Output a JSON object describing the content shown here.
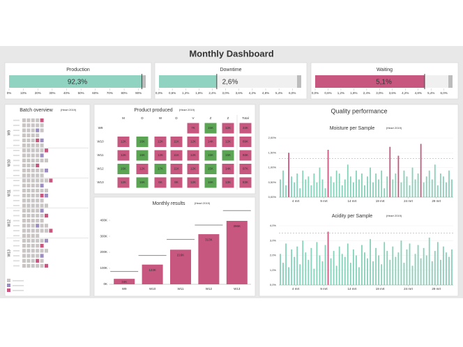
{
  "header": {
    "title": "Monthly Dashboard"
  },
  "kpis": [
    {
      "title": "Production",
      "value": 92.3,
      "value_label": "92,3%",
      "color": "#8fd3c0",
      "xlim": [
        0,
        95
      ],
      "xticks": [
        {
          "value": 0,
          "label": "0%"
        },
        {
          "value": 10,
          "label": "10%"
        },
        {
          "value": 20,
          "label": "20%"
        },
        {
          "value": 30,
          "label": "30%"
        },
        {
          "value": 40,
          "label": "40%"
        },
        {
          "value": 50,
          "label": "50%"
        },
        {
          "value": 60,
          "label": "60%"
        },
        {
          "value": 70,
          "label": "70%"
        },
        {
          "value": 80,
          "label": "80%"
        },
        {
          "value": 90,
          "label": "90%"
        }
      ]
    },
    {
      "title": "Downtime",
      "value": 2.6,
      "value_label": "2,6%",
      "color": "#8fd3c0",
      "xlim": [
        0,
        6.4
      ],
      "xticks": [
        {
          "value": 0,
          "label": "0,0%"
        },
        {
          "value": 0.6,
          "label": "0,6%"
        },
        {
          "value": 1.2,
          "label": "1,2%"
        },
        {
          "value": 1.8,
          "label": "1,8%"
        },
        {
          "value": 2.4,
          "label": "2,4%"
        },
        {
          "value": 3.0,
          "label": "3,0%"
        },
        {
          "value": 3.6,
          "label": "3,6%"
        },
        {
          "value": 4.2,
          "label": "4,2%"
        },
        {
          "value": 4.8,
          "label": "4,8%"
        },
        {
          "value": 5.4,
          "label": "5,4%"
        },
        {
          "value": 6.0,
          "label": "6,0%"
        }
      ]
    },
    {
      "title": "Waiting",
      "value": 5.1,
      "value_label": "5,1%",
      "color": "#c7577f",
      "xlim": [
        0,
        6.4
      ],
      "xticks": [
        {
          "value": 0,
          "label": "0,0%"
        },
        {
          "value": 0.6,
          "label": "0,6%"
        },
        {
          "value": 1.2,
          "label": "1,2%"
        },
        {
          "value": 1.8,
          "label": "1,8%"
        },
        {
          "value": 2.4,
          "label": "2,4%"
        },
        {
          "value": 3.0,
          "label": "3,0%"
        },
        {
          "value": 3.6,
          "label": "3,6%"
        },
        {
          "value": 4.2,
          "label": "4,2%"
        },
        {
          "value": 4.8,
          "label": "4,8%"
        },
        {
          "value": 5.4,
          "label": "5,4%"
        },
        {
          "value": 6.0,
          "label": "6,0%"
        }
      ]
    }
  ],
  "batch_overview": {
    "title": "Batch overview",
    "subtitle": "(Heart 2019)",
    "status_colors": [
      "#c9c5c5",
      "#9d8ec2",
      "#c7577f"
    ],
    "weeks": [
      "W9",
      "W10",
      "W11",
      "W12",
      "W13"
    ],
    "rows": [
      [
        0,
        0,
        0,
        0,
        2
      ],
      [
        0,
        0,
        0,
        0,
        0
      ],
      [
        0,
        0,
        0,
        1,
        0
      ],
      [
        0,
        0,
        0,
        0
      ],
      [
        0,
        0,
        0,
        2,
        1
      ],
      [
        0,
        0,
        0,
        0,
        0
      ],
      [
        0,
        0,
        0,
        0,
        0,
        2
      ],
      [
        0,
        0,
        0,
        0,
        1
      ],
      [
        0,
        0,
        0,
        0,
        0,
        0
      ],
      [
        0,
        0,
        0,
        2
      ],
      [
        0,
        0,
        0,
        0,
        0,
        1
      ],
      [
        0,
        0,
        0,
        0,
        0
      ],
      [
        0,
        0,
        0,
        0,
        0,
        0,
        2
      ],
      [
        0,
        0,
        0,
        0,
        1
      ],
      [
        0,
        0,
        0,
        0,
        0,
        0
      ],
      [
        0,
        0,
        0,
        0,
        2,
        1
      ],
      [
        0,
        0,
        0,
        0,
        0
      ],
      [
        0,
        0,
        0,
        0,
        0,
        0
      ],
      [
        0,
        0,
        0,
        0,
        1
      ],
      [
        0,
        0,
        0,
        0,
        0,
        2
      ],
      [
        0,
        0,
        0,
        0,
        0
      ],
      [
        0,
        0,
        0,
        1,
        0,
        0
      ],
      [
        0,
        0,
        0,
        0,
        0,
        0,
        2
      ],
      [
        0,
        0,
        0,
        0
      ],
      [
        0,
        0,
        0,
        0,
        0,
        1
      ],
      [
        0,
        0,
        0,
        0,
        2
      ],
      [
        0,
        0,
        0,
        0,
        0,
        0
      ],
      [
        0,
        0,
        0,
        0,
        1
      ],
      [
        0,
        0,
        0,
        2,
        0
      ],
      [
        0,
        0,
        0,
        0,
        0,
        2
      ]
    ]
  },
  "product_produced": {
    "title": "Product produced",
    "subtitle": "(Heart 2019)",
    "columns": [
      "M",
      "D",
      "W",
      "D",
      "V",
      "Z",
      "Z",
      "Total"
    ],
    "threshold": 15,
    "above_color": "#5aa454",
    "below_color": "#c7577f",
    "rows": [
      {
        "label": "W9",
        "values": [
          null,
          null,
          null,
          null,
          7,
          15,
          12
        ],
        "value_labels": [
          null,
          null,
          null,
          null,
          "7K",
          "15K",
          "12K"
        ],
        "total": 34,
        "total_label": "34K"
      },
      {
        "label": "W10",
        "values": [
          12,
          16,
          12,
          11,
          12,
          14,
          12
        ],
        "value_labels": [
          "12K",
          "16K",
          "12K",
          "11K",
          "12K",
          "14K",
          "12K"
        ],
        "total": 89,
        "total_label": "89K"
      },
      {
        "label": "W11",
        "values": [
          12,
          16,
          12,
          11,
          12,
          15,
          15
        ],
        "value_labels": [
          "12K",
          "16K",
          "12K",
          "11K",
          "12K",
          "15K",
          "15K"
        ],
        "total": 93,
        "total_label": "93K"
      },
      {
        "label": "W12",
        "values": [
          16,
          12,
          17,
          11,
          12,
          15,
          14
        ],
        "value_labels": [
          "16K",
          "12K",
          "17K",
          "11K",
          "12K",
          "15K",
          "14K"
        ],
        "total": 97,
        "total_label": "97K"
      },
      {
        "label": "W13",
        "values": [
          12,
          16,
          6,
          8,
          12,
          16,
          13
        ],
        "value_labels": [
          "12K",
          "16K",
          "6K",
          "8K",
          "12K",
          "16K",
          "13K"
        ],
        "total": 83,
        "total_label": "83K"
      }
    ]
  },
  "quality": {
    "title": "Quality performance"
  },
  "chart_data": [
    {
      "type": "bar",
      "title": "Monthly results",
      "subtitle": "(Heart 2019)",
      "categories": [
        "W9",
        "W10",
        "W11",
        "W12",
        "W13"
      ],
      "values": [
        34,
        123,
        216,
        313,
        396
      ],
      "value_labels": [
        "34K",
        "123K",
        "216K",
        "313K",
        "396K"
      ],
      "targets": [
        80,
        180,
        280,
        370,
        460
      ],
      "color": "#c7577f",
      "target_color": "#888888",
      "ylim": [
        0,
        470
      ],
      "yticks": [
        {
          "value": 0,
          "label": "0K"
        },
        {
          "value": 100,
          "label": "100K"
        },
        {
          "value": 200,
          "label": "200K"
        },
        {
          "value": 300,
          "label": "300K"
        },
        {
          "value": 400,
          "label": "400K"
        }
      ]
    },
    {
      "type": "column",
      "title": "Moisture per Sample",
      "subtitle": "(Heart 2019)",
      "color": "#86d1b9",
      "highlight_color": "#c7577f",
      "limit": 1.3,
      "values": [
        0.6,
        0.9,
        0.4,
        1.5,
        0.7,
        0.5,
        0.8,
        0.3,
        0.9,
        0.6,
        0.7,
        0.4,
        0.8,
        0.5,
        1.0,
        0.6,
        0.3,
        1.6,
        0.7,
        0.5,
        0.9,
        0.8,
        0.4,
        0.6,
        1.1,
        0.7,
        0.5,
        0.9,
        0.6,
        0.8,
        0.4,
        0.7,
        1.0,
        0.5,
        0.8,
        0.6,
        0.9,
        0.3,
        0.7,
        1.7,
        0.6,
        0.8,
        1.4,
        0.5,
        0.9,
        0.7,
        0.4,
        1.0,
        0.6,
        0.8,
        1.8,
        0.5,
        0.7,
        0.9,
        0.6,
        1.1,
        0.4,
        0.8,
        0.7,
        0.5,
        0.9,
        0.6
      ],
      "xlim": [
        0,
        62
      ],
      "xticks": [
        {
          "value": 6,
          "label": "4 mrt"
        },
        {
          "value": 16,
          "label": "9 mrt"
        },
        {
          "value": 26,
          "label": "14 mrt"
        },
        {
          "value": 36,
          "label": "19 mrt"
        },
        {
          "value": 46,
          "label": "24 mrt"
        },
        {
          "value": 56,
          "label": "29 mrt"
        }
      ],
      "ylim": [
        0,
        2
      ],
      "yticks": [
        {
          "value": 0,
          "label": "0,00%"
        },
        {
          "value": 0.5,
          "label": "0,50%"
        },
        {
          "value": 1,
          "label": "1,00%"
        },
        {
          "value": 1.5,
          "label": "1,50%"
        },
        {
          "value": 2,
          "label": "2,00%"
        }
      ]
    },
    {
      "type": "column",
      "title": "Acidity per Sample",
      "subtitle": "(Heart 2019)",
      "color": "#86d1b9",
      "highlight_color": "#c7577f",
      "limit": 3.5,
      "values": [
        2.1,
        1.5,
        2.8,
        1.2,
        2.4,
        1.9,
        2.6,
        1.4,
        3.0,
        2.2,
        1.7,
        2.5,
        1.1,
        2.9,
        2.0,
        1.6,
        2.7,
        3.6,
        1.8,
        2.3,
        1.3,
        2.6,
        2.1,
        1.9,
        2.8,
        1.5,
        2.4,
        2.0,
        1.2,
        2.7,
        2.2,
        1.8,
        3.1,
        1.6,
        2.5,
        2.0,
        1.4,
        2.9,
        2.3,
        1.7,
        2.6,
        1.9,
        2.2,
        3.0,
        1.5,
        2.4,
        2.8,
        1.3,
        2.1,
        2.7,
        1.8,
        2.5,
        2.0,
        3.2,
        1.6,
        2.3,
        2.9,
        1.7,
        2.6,
        2.2,
        1.9,
        2.4
      ],
      "xlim": [
        0,
        62
      ],
      "xticks": [
        {
          "value": 6,
          "label": "4 mrt"
        },
        {
          "value": 16,
          "label": "9 mrt"
        },
        {
          "value": 26,
          "label": "14 mrt"
        },
        {
          "value": 36,
          "label": "19 mrt"
        },
        {
          "value": 46,
          "label": "24 mrt"
        },
        {
          "value": 56,
          "label": "29 mrt"
        }
      ],
      "ylim": [
        0,
        4
      ],
      "yticks": [
        {
          "value": 0,
          "label": "0,0%"
        },
        {
          "value": 1,
          "label": "1,0%"
        },
        {
          "value": 2,
          "label": "2,0%"
        },
        {
          "value": 3,
          "label": "3,0%"
        },
        {
          "value": 4,
          "label": "4,0%"
        }
      ]
    }
  ]
}
